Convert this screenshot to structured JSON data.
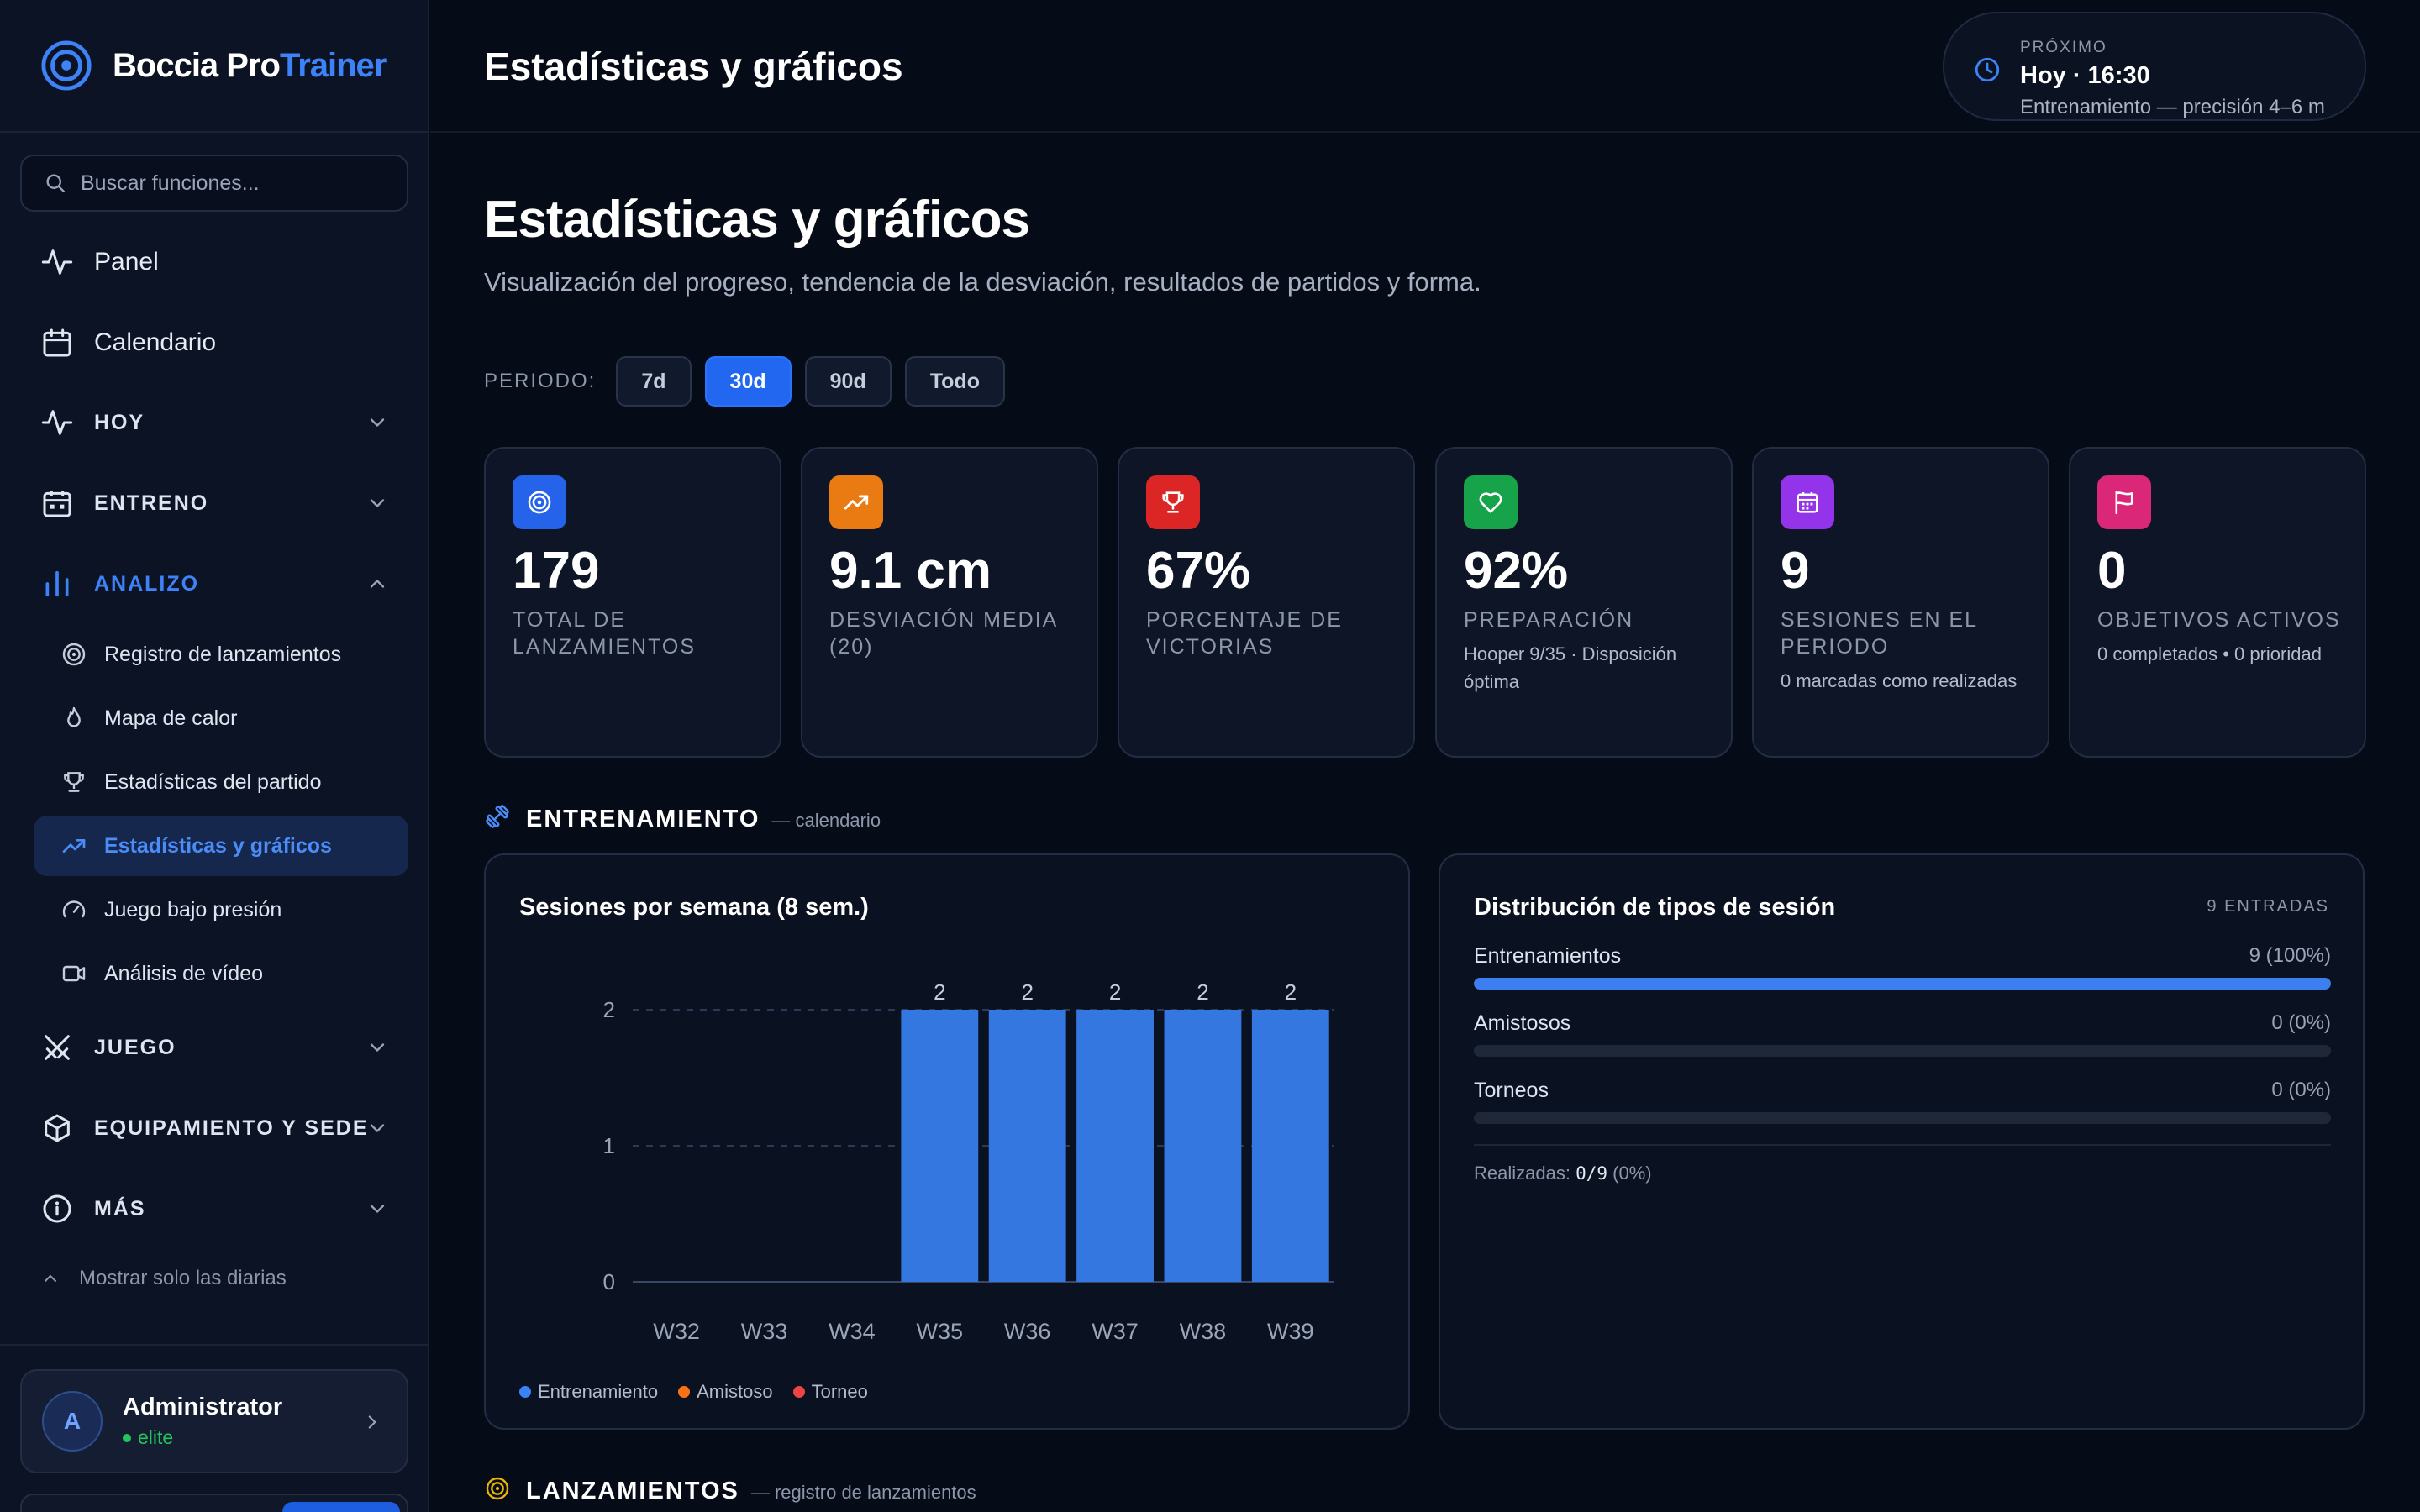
{
  "brand": {
    "name_part1": "Boccia Pro",
    "name_part2": "Trainer"
  },
  "search": {
    "placeholder": "Buscar funciones..."
  },
  "nav": {
    "panel": "Panel",
    "calendario": "Calendario",
    "hoy": "HOY",
    "entreno": "ENTRENO",
    "analizo": "ANALIZO",
    "analizo_items": [
      "Registro de lanzamientos",
      "Mapa de calor",
      "Estadísticas del partido",
      "Estadísticas y gráficos",
      "Juego bajo presión",
      "Análisis de vídeo"
    ],
    "juego": "JUEGO",
    "equipamiento": "EQUIPAMIENTO Y SEDE",
    "mas": "MÁS",
    "show_daily": "Mostrar solo las diarias"
  },
  "user": {
    "initial": "A",
    "name": "Administrator",
    "role": "elite"
  },
  "topbar": {
    "title": "Estadísticas y gráficos",
    "next_kicker": "PRÓXIMO",
    "next_main": "Hoy · 16:30",
    "next_sub": "Entrenamiento — precisión 4–6 m"
  },
  "page": {
    "title": "Estadísticas y gráficos",
    "subtitle": "Visualización del progreso, tendencia de la desviación, resultados de partidos y forma."
  },
  "period": {
    "label": "PERIODO:",
    "options": [
      "7d",
      "30d",
      "90d",
      "Todo"
    ],
    "selected": "30d"
  },
  "stats": [
    {
      "value": "179",
      "label": "TOTAL DE LANZAMIENTOS",
      "note": "",
      "color": "#2563eb",
      "icon": "target-icon"
    },
    {
      "value": "9.1 cm",
      "label": "DESVIACIÓN MEDIA (20)",
      "note": "",
      "color": "#ea7a12",
      "icon": "trending-up-icon"
    },
    {
      "value": "67%",
      "label": "PORCENTAJE DE VICTORIAS",
      "note": "",
      "color": "#dc2626",
      "icon": "trophy-icon"
    },
    {
      "value": "92%",
      "label": "PREPARACIÓN",
      "note": "Hooper 9/35 · Disposición óptima",
      "color": "#16a34a",
      "icon": "heart-icon"
    },
    {
      "value": "9",
      "label": "SESIONES EN EL PERIODO",
      "note": "0 marcadas como realizadas",
      "color": "#9333ea",
      "icon": "calendar-icon"
    },
    {
      "value": "0",
      "label": "OBJETIVOS ACTIVOS",
      "note": "0 completados • 0 prioridad",
      "color": "#db2777",
      "icon": "flag-icon"
    }
  ],
  "sections": {
    "training_title": "ENTRENAMIENTO",
    "training_sub": "— calendario",
    "throws_title": "LANZAMIENTOS",
    "throws_sub": "— registro de lanzamientos"
  },
  "sessions_chart": {
    "title": "Sesiones por semana (8 sem.)",
    "legend": [
      {
        "name": "Entrenamiento",
        "color": "#3b82f6"
      },
      {
        "name": "Amistoso",
        "color": "#f97316"
      },
      {
        "name": "Torneo",
        "color": "#ef4444"
      }
    ]
  },
  "chart_data": {
    "type": "bar",
    "title": "Sesiones por semana (8 sem.)",
    "categories": [
      "W32",
      "W33",
      "W34",
      "W35",
      "W36",
      "W37",
      "W38",
      "W39"
    ],
    "series": [
      {
        "name": "Entrenamiento",
        "values": [
          0,
          0,
          0,
          2,
          2,
          2,
          2,
          2
        ]
      },
      {
        "name": "Amistoso",
        "values": [
          0,
          0,
          0,
          0,
          0,
          0,
          0,
          0
        ]
      },
      {
        "name": "Torneo",
        "values": [
          0,
          0,
          0,
          0,
          0,
          0,
          0,
          0
        ]
      }
    ],
    "yticks": [
      0,
      1,
      2
    ],
    "ylim": [
      0,
      2
    ],
    "grid": true,
    "legend": "bottom-left",
    "data_labels": true
  },
  "distribution": {
    "title": "Distribución de tipos de sesión",
    "count": "9 ENTRADAS",
    "rows": [
      {
        "label": "Entrenamientos",
        "value": "9 (100%)",
        "fraction": 1.0
      },
      {
        "label": "Amistosos",
        "value": "0 (0%)",
        "fraction": 0
      },
      {
        "label": "Torneos",
        "value": "0 (0%)",
        "fraction": 0
      }
    ],
    "done_label": "Realizadas:",
    "done_value": "0/9",
    "done_pct": "(0%)"
  }
}
